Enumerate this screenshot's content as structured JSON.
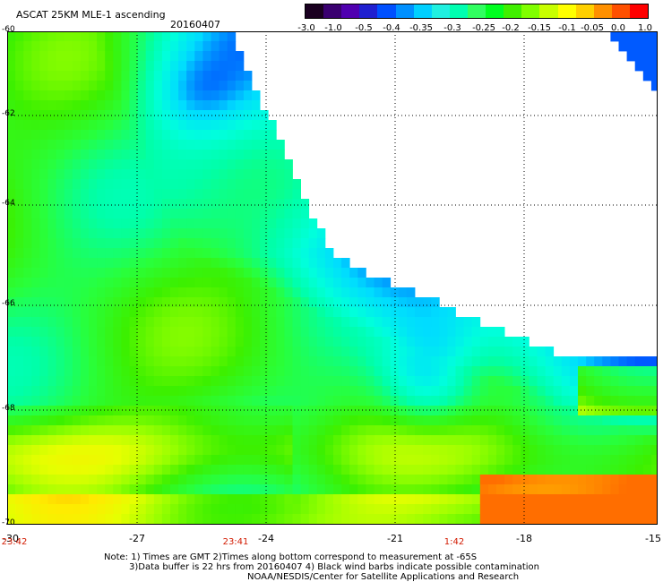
{
  "header": {
    "title": "ASCAT 25KM MLE-1 ascending",
    "date": "20160407"
  },
  "colorbar": {
    "labels": [
      "-3.0",
      "-1.0",
      "-0.5",
      "-0.4",
      "-0.35",
      "-0.3",
      "-0.25",
      "-0.2",
      "-0.15",
      "-0.1",
      "-0.05",
      "0.0",
      "1.0"
    ],
    "colors": [
      "#1a0020",
      "#3a0070",
      "#5000b0",
      "#2020d0",
      "#0050ff",
      "#0090ff",
      "#00d0ff",
      "#20f0e0",
      "#00ffb0",
      "#30ff60",
      "#00ff20",
      "#40f000",
      "#80ff00",
      "#c8ff00",
      "#ffff00",
      "#ffd000",
      "#ff9000",
      "#ff5000",
      "#ff0000"
    ]
  },
  "map": {
    "lat_labels": [
      "-60",
      "-62",
      "-64",
      "-66",
      "-68",
      "-70"
    ],
    "lon_labels": [
      "-30",
      "-27",
      "-24",
      "-21",
      "-18",
      "-15"
    ],
    "time_labels": [
      "23:42",
      "23:41",
      "1:42"
    ],
    "lat_range": [
      -70,
      -60
    ],
    "lon_range": [
      -30,
      -15
    ]
  },
  "notes": {
    "line1": "Note: 1) Times are GMT 2)Times along bottom correspond to measurement at -65S",
    "line2": "3)Data buffer is 22 hrs from 20160407 4) Black wind barbs indicate possible contamination",
    "line3": "NOAA/NESDIS/Center for Satellite Applications and Research"
  }
}
